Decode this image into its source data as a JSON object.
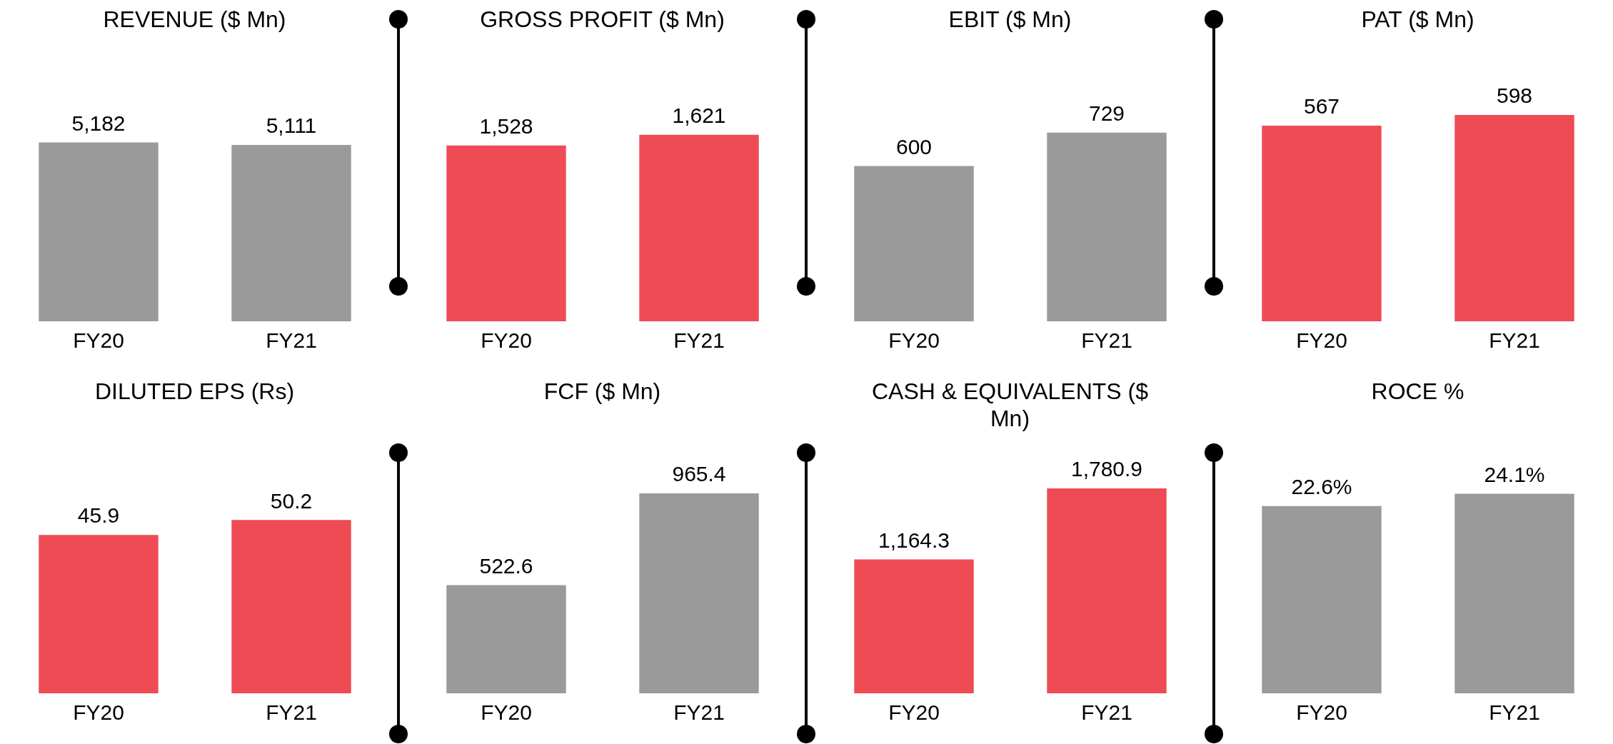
{
  "chart_data": [
    {
      "type": "bar",
      "title": "REVENUE ($ Mn)",
      "categories": [
        "FY20",
        "FY21"
      ],
      "values": [
        5182,
        5111
      ],
      "colors": [
        "#9a9a9a",
        "#9a9a9a"
      ],
      "value_labels": [
        "5,182",
        "5,111"
      ]
    },
    {
      "type": "bar",
      "title": "GROSS PROFIT ($ Mn)",
      "categories": [
        "FY20",
        "FY21"
      ],
      "values": [
        1528,
        1621
      ],
      "colors": [
        "#ee4b55",
        "#ee4b55"
      ],
      "value_labels": [
        "1,528",
        "1,621"
      ]
    },
    {
      "type": "bar",
      "title": "EBIT ($ Mn)",
      "categories": [
        "FY20",
        "FY21"
      ],
      "values": [
        600,
        729
      ],
      "colors": [
        "#9a9a9a",
        "#9a9a9a"
      ],
      "value_labels": [
        "600",
        "729"
      ]
    },
    {
      "type": "bar",
      "title": "PAT  ($ Mn)",
      "categories": [
        "FY20",
        "FY21"
      ],
      "values": [
        567,
        598
      ],
      "colors": [
        "#ee4b55",
        "#ee4b55"
      ],
      "value_labels": [
        "567",
        "598"
      ]
    },
    {
      "type": "bar",
      "title": "DILUTED EPS (Rs)",
      "categories": [
        "FY20",
        "FY21"
      ],
      "values": [
        45.9,
        50.2
      ],
      "colors": [
        "#ee4b55",
        "#ee4b55"
      ],
      "value_labels": [
        "45.9",
        "50.2"
      ]
    },
    {
      "type": "bar",
      "title": "FCF ($ Mn)",
      "categories": [
        "FY20",
        "FY21"
      ],
      "values": [
        522.6,
        965.4
      ],
      "colors": [
        "#9a9a9a",
        "#9a9a9a"
      ],
      "value_labels": [
        "522.6",
        "965.4"
      ]
    },
    {
      "type": "bar",
      "title": "CASH &  EQUIVALENTS ($ Mn)",
      "categories": [
        "FY20",
        "FY21"
      ],
      "values": [
        1164.3,
        1780.9
      ],
      "colors": [
        "#ee4b55",
        "#ee4b55"
      ],
      "value_labels": [
        "1,164.3",
        "1,780.9"
      ]
    },
    {
      "type": "bar",
      "title": "ROCE %",
      "categories": [
        "FY20",
        "FY21"
      ],
      "values": [
        22.6,
        24.1
      ],
      "colors": [
        "#9a9a9a",
        "#9a9a9a"
      ],
      "value_labels": [
        "22.6%",
        "24.1%"
      ]
    }
  ]
}
